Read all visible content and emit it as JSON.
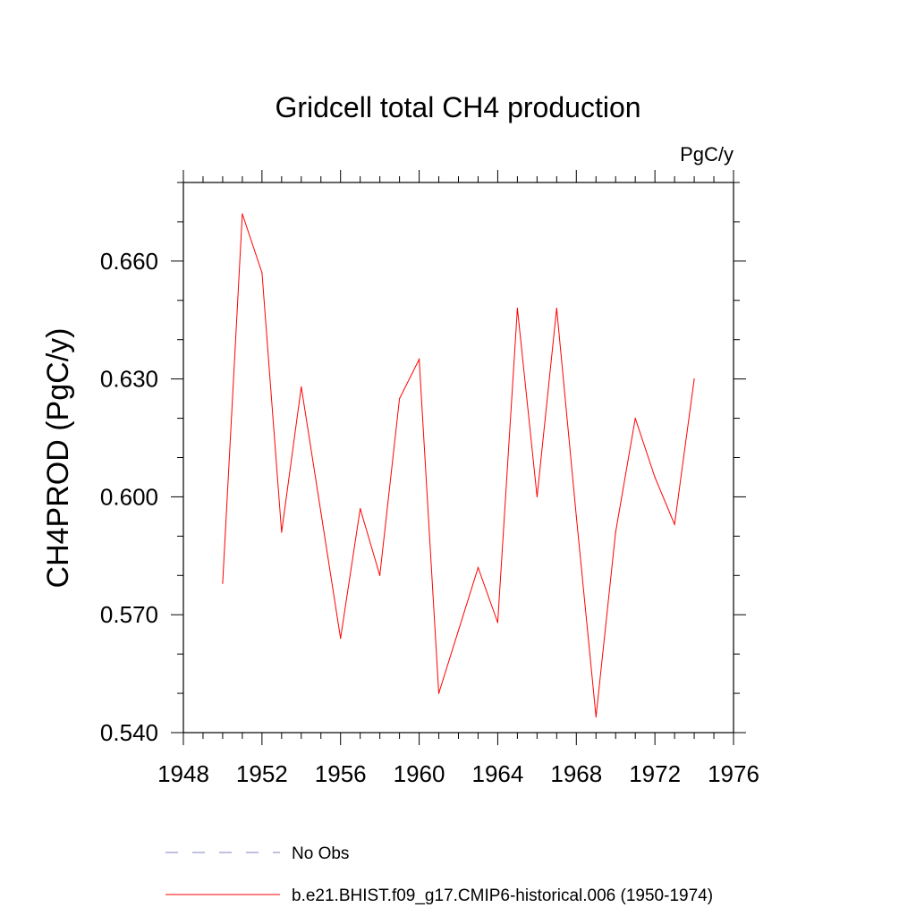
{
  "chart_data": {
    "type": "line",
    "title": "Gridcell total CH4 production",
    "units_label": "PgC/y",
    "xlabel": "",
    "ylabel": "CH4PROD  (PgC/y)",
    "xlim": [
      1948,
      1976
    ],
    "ylim": [
      0.54,
      0.68
    ],
    "x_ticks": [
      "1948",
      "1952",
      "1956",
      "1960",
      "1964",
      "1968",
      "1972",
      "1976"
    ],
    "x_tick_values": [
      1948,
      1952,
      1956,
      1960,
      1964,
      1968,
      1972,
      1976
    ],
    "y_ticks": [
      "0.540",
      "0.570",
      "0.600",
      "0.630",
      "0.660"
    ],
    "y_tick_values": [
      0.54,
      0.57,
      0.6,
      0.63,
      0.66
    ],
    "grid": false,
    "legend_placement": "bottom",
    "series": [
      {
        "name": "b.e21.BHIST.f09_g17.CMIP6-historical.006 (1950-1974)",
        "color": "#ff0000",
        "style": "solid",
        "x": [
          1950,
          1951,
          1952,
          1953,
          1954,
          1955,
          1956,
          1957,
          1958,
          1959,
          1960,
          1961,
          1962,
          1963,
          1964,
          1965,
          1966,
          1967,
          1968,
          1969,
          1970,
          1971,
          1972,
          1973,
          1974
        ],
        "y": [
          0.578,
          0.672,
          0.657,
          0.591,
          0.628,
          0.596,
          0.564,
          0.597,
          0.58,
          0.625,
          0.635,
          0.55,
          0.566,
          0.582,
          0.568,
          0.648,
          0.6,
          0.648,
          0.595,
          0.544,
          0.591,
          0.62,
          0.605,
          0.593,
          0.63
        ]
      }
    ],
    "legend": [
      {
        "label": "No Obs",
        "color": "#8080c0",
        "style": "dashed"
      },
      {
        "label": "b.e21.BHIST.f09_g17.CMIP6-historical.006 (1950-1974)",
        "color": "#ff0000",
        "style": "solid"
      }
    ]
  }
}
